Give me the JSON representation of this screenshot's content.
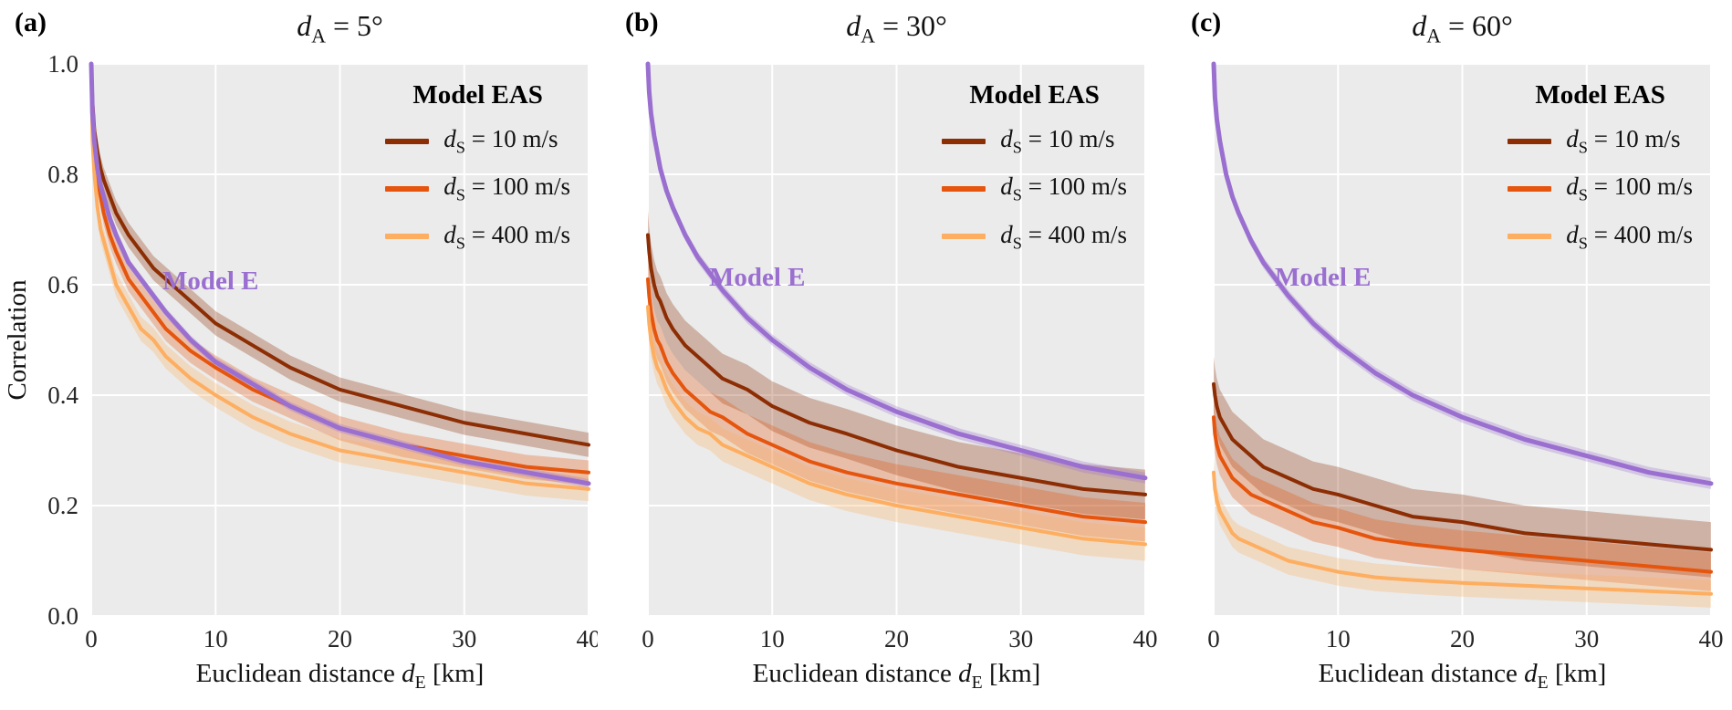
{
  "style": {
    "panel_bg": "#ebebeb",
    "grid_color": "#ffffff"
  },
  "model_e": {
    "label": "Model E",
    "color": "#9a6fd0"
  },
  "legend": {
    "title": "Model EAS",
    "entries": [
      {
        "var": "d",
        "sub": "S",
        "rest": " = 10 m/s",
        "color": "#8c2d04"
      },
      {
        "var": "d",
        "sub": "S",
        "rest": " = 100 m/s",
        "color": "#e6550d"
      },
      {
        "var": "d",
        "sub": "S",
        "rest": " = 400 m/s",
        "color": "#fdae61"
      }
    ]
  },
  "axes": {
    "x": {
      "label_prefix": "Euclidean distance ",
      "var": "d",
      "sub": "E",
      "label_suffix": " [km]",
      "ticks": [
        0,
        10,
        20,
        30,
        40
      ]
    },
    "y": {
      "label": "Correlation",
      "ticks": [
        0,
        0.2,
        0.4,
        0.6,
        0.8,
        1
      ]
    }
  },
  "panels": [
    {
      "label": "(a)",
      "title": {
        "var": "d",
        "sub": "A",
        "rest": " = 5°"
      }
    },
    {
      "label": "(b)",
      "title": {
        "var": "d",
        "sub": "A",
        "rest": " = 30°"
      }
    },
    {
      "label": "(c)",
      "title": {
        "var": "d",
        "sub": "A",
        "rest": " = 60°"
      }
    }
  ],
  "chart_data": [
    {
      "type": "line",
      "title": "d_A = 5°",
      "xlabel": "Euclidean distance d_E [km]",
      "ylabel": "Correlation",
      "xlim": [
        0,
        40
      ],
      "ylim": [
        0,
        1
      ],
      "grid": true,
      "legend_position": "upper right",
      "x": [
        0,
        0.1,
        0.25,
        0.5,
        0.75,
        1,
        1.5,
        2,
        3,
        4,
        5,
        6,
        8,
        10,
        13,
        16,
        20,
        25,
        30,
        35,
        40
      ],
      "series": [
        {
          "name": "Model EAS d_S = 10 m/s",
          "color": "#8c2d04",
          "band": 0.022,
          "values": [
            1.0,
            0.93,
            0.88,
            0.84,
            0.81,
            0.79,
            0.76,
            0.73,
            0.69,
            0.66,
            0.63,
            0.61,
            0.57,
            0.53,
            0.49,
            0.45,
            0.41,
            0.38,
            0.35,
            0.33,
            0.31
          ]
        },
        {
          "name": "Model EAS d_S = 100 m/s",
          "color": "#e6550d",
          "band": 0.022,
          "values": [
            1.0,
            0.9,
            0.84,
            0.79,
            0.76,
            0.73,
            0.69,
            0.66,
            0.61,
            0.58,
            0.55,
            0.52,
            0.48,
            0.45,
            0.41,
            0.38,
            0.34,
            0.31,
            0.29,
            0.27,
            0.26
          ]
        },
        {
          "name": "Model EAS d_S = 400 m/s",
          "color": "#fdae61",
          "band": 0.022,
          "values": [
            1.0,
            0.86,
            0.8,
            0.74,
            0.7,
            0.68,
            0.64,
            0.6,
            0.56,
            0.52,
            0.5,
            0.47,
            0.43,
            0.4,
            0.36,
            0.33,
            0.3,
            0.28,
            0.26,
            0.24,
            0.23
          ]
        },
        {
          "name": "Model E",
          "color": "#9a6fd0",
          "band": 0.008,
          "values": [
            1.0,
            0.91,
            0.86,
            0.81,
            0.78,
            0.76,
            0.72,
            0.69,
            0.64,
            0.61,
            0.58,
            0.55,
            0.5,
            0.46,
            0.42,
            0.38,
            0.34,
            0.31,
            0.28,
            0.26,
            0.24
          ]
        }
      ]
    },
    {
      "type": "line",
      "title": "d_A = 30°",
      "xlabel": "Euclidean distance d_E [km]",
      "ylabel": "Correlation",
      "xlim": [
        0,
        40
      ],
      "ylim": [
        0,
        1
      ],
      "grid": true,
      "legend_position": "upper right",
      "x": [
        0,
        0.1,
        0.25,
        0.5,
        0.75,
        1,
        1.5,
        2,
        3,
        4,
        5,
        6,
        8,
        10,
        13,
        16,
        20,
        25,
        30,
        35,
        40
      ],
      "series": [
        {
          "name": "Model EAS d_S = 10 m/s",
          "color": "#8c2d04",
          "band": 0.045,
          "values": [
            0.69,
            0.66,
            0.63,
            0.6,
            0.58,
            0.57,
            0.54,
            0.52,
            0.49,
            0.47,
            0.45,
            0.43,
            0.41,
            0.38,
            0.35,
            0.33,
            0.3,
            0.27,
            0.25,
            0.23,
            0.22
          ]
        },
        {
          "name": "Model EAS d_S = 100 m/s",
          "color": "#e6550d",
          "band": 0.035,
          "values": [
            0.61,
            0.58,
            0.55,
            0.52,
            0.5,
            0.49,
            0.46,
            0.44,
            0.41,
            0.39,
            0.37,
            0.36,
            0.33,
            0.31,
            0.28,
            0.26,
            0.24,
            0.22,
            0.2,
            0.18,
            0.17
          ]
        },
        {
          "name": "Model EAS d_S = 400 m/s",
          "color": "#fdae61",
          "band": 0.03,
          "values": [
            0.56,
            0.53,
            0.5,
            0.47,
            0.45,
            0.44,
            0.41,
            0.39,
            0.36,
            0.34,
            0.33,
            0.31,
            0.29,
            0.27,
            0.24,
            0.22,
            0.2,
            0.18,
            0.16,
            0.14,
            0.13
          ]
        },
        {
          "name": "Model E",
          "color": "#9a6fd0",
          "band": 0.01,
          "values": [
            1.0,
            0.95,
            0.91,
            0.87,
            0.84,
            0.81,
            0.77,
            0.74,
            0.69,
            0.65,
            0.62,
            0.59,
            0.54,
            0.5,
            0.45,
            0.41,
            0.37,
            0.33,
            0.3,
            0.27,
            0.25
          ]
        }
      ]
    },
    {
      "type": "line",
      "title": "d_A = 60°",
      "xlabel": "Euclidean distance d_E [km]",
      "ylabel": "Correlation",
      "xlim": [
        0,
        40
      ],
      "ylim": [
        0,
        1
      ],
      "grid": true,
      "legend_position": "upper right",
      "x": [
        0,
        0.1,
        0.25,
        0.5,
        0.75,
        1,
        1.5,
        2,
        3,
        4,
        5,
        6,
        8,
        10,
        13,
        16,
        20,
        25,
        30,
        35,
        40
      ],
      "series": [
        {
          "name": "Model EAS d_S = 10 m/s",
          "color": "#8c2d04",
          "band": 0.05,
          "values": [
            0.42,
            0.4,
            0.38,
            0.36,
            0.35,
            0.34,
            0.32,
            0.31,
            0.29,
            0.27,
            0.26,
            0.25,
            0.23,
            0.22,
            0.2,
            0.18,
            0.17,
            0.15,
            0.14,
            0.13,
            0.12
          ]
        },
        {
          "name": "Model EAS d_S = 100 m/s",
          "color": "#e6550d",
          "band": 0.035,
          "values": [
            0.36,
            0.33,
            0.31,
            0.29,
            0.28,
            0.27,
            0.25,
            0.24,
            0.22,
            0.21,
            0.2,
            0.19,
            0.17,
            0.16,
            0.14,
            0.13,
            0.12,
            0.11,
            0.1,
            0.09,
            0.08
          ]
        },
        {
          "name": "Model EAS d_S = 400 m/s",
          "color": "#fdae61",
          "band": 0.025,
          "values": [
            0.26,
            0.23,
            0.21,
            0.19,
            0.18,
            0.17,
            0.15,
            0.14,
            0.13,
            0.12,
            0.11,
            0.1,
            0.09,
            0.08,
            0.07,
            0.065,
            0.06,
            0.055,
            0.05,
            0.045,
            0.04
          ]
        },
        {
          "name": "Model E",
          "color": "#9a6fd0",
          "band": 0.01,
          "values": [
            1.0,
            0.94,
            0.9,
            0.86,
            0.83,
            0.8,
            0.76,
            0.73,
            0.68,
            0.64,
            0.61,
            0.58,
            0.53,
            0.49,
            0.44,
            0.4,
            0.36,
            0.32,
            0.29,
            0.26,
            0.24
          ]
        }
      ]
    }
  ]
}
